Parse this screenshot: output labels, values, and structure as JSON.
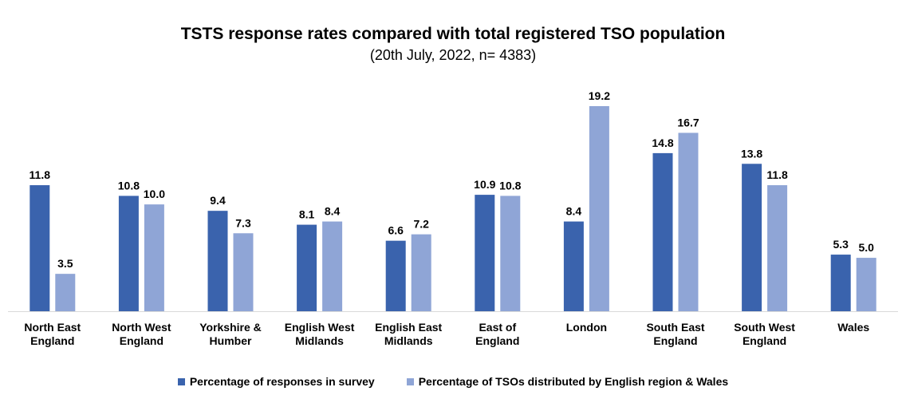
{
  "chart_data": {
    "type": "bar",
    "title": "TSTS response rates compared with total registered TSO population",
    "subtitle": "(20th July, 2022, n= 4383)",
    "categories": [
      [
        "North East",
        "England"
      ],
      [
        "North West",
        "England"
      ],
      [
        "Yorkshire &",
        "Humber"
      ],
      [
        "English West",
        "Midlands"
      ],
      [
        "English East",
        "Midlands"
      ],
      [
        "East of",
        "England"
      ],
      [
        "London"
      ],
      [
        "South East",
        "England"
      ],
      [
        "South West",
        "England"
      ],
      [
        "Wales"
      ]
    ],
    "series": [
      {
        "name": "Percentage of responses in survey",
        "color": "#3A63AD",
        "values": [
          11.8,
          10.8,
          9.4,
          8.1,
          6.6,
          10.9,
          8.4,
          14.8,
          13.8,
          5.3
        ],
        "labels": [
          "11.8",
          "10.8",
          "9.4",
          "8.1",
          "6.6",
          "10.9",
          "8.4",
          "14.8",
          "13.8",
          "5.3"
        ]
      },
      {
        "name": "Percentage of TSOs distributed by English region & Wales",
        "color": "#8FA5D6",
        "values": [
          3.5,
          10.0,
          7.3,
          8.4,
          7.2,
          10.8,
          19.2,
          16.7,
          11.8,
          5.0
        ],
        "labels": [
          "3.5",
          "10.0",
          "7.3",
          "8.4",
          "7.2",
          "10.8",
          "19.2",
          "16.7",
          "11.8",
          "5.0"
        ]
      }
    ],
    "ylim": [
      0,
      19.2
    ],
    "grid": false,
    "legend_position": "bottom"
  }
}
